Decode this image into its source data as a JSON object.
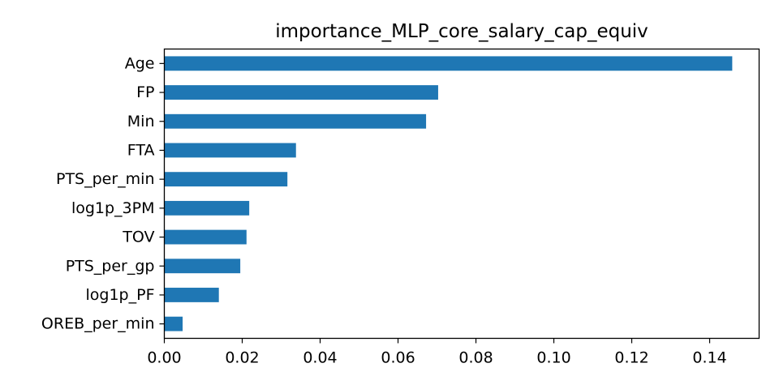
{
  "chart_data": {
    "type": "bar",
    "orientation": "horizontal",
    "title": "importance_MLP_core_salary_cap_equiv",
    "xlabel": "",
    "ylabel": "",
    "categories": [
      "Age",
      "FP",
      "Min",
      "FTA",
      "PTS_per_min",
      "log1p_3PM",
      "TOV",
      "PTS_per_gp",
      "log1p_PF",
      "OREB_per_min"
    ],
    "values": [
      0.1458,
      0.0703,
      0.0672,
      0.0338,
      0.0316,
      0.0218,
      0.0211,
      0.0195,
      0.014,
      0.0047
    ],
    "xlim": [
      0,
      0.1527
    ],
    "xticks": [
      0.0,
      0.02,
      0.04,
      0.06,
      0.08,
      0.1,
      0.12,
      0.14
    ],
    "xtick_labels": [
      "0.00",
      "0.02",
      "0.04",
      "0.06",
      "0.08",
      "0.10",
      "0.12",
      "0.14"
    ],
    "grid": false,
    "legend": false,
    "bar_color": "#1f77b4"
  }
}
